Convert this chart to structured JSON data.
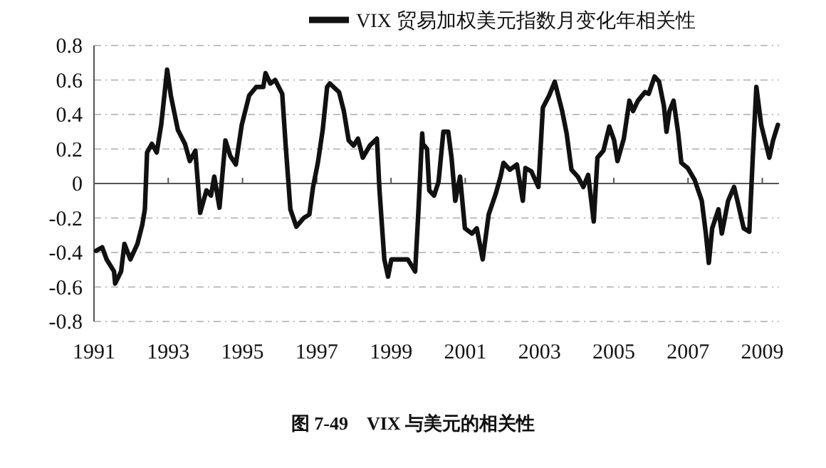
{
  "chart_data": {
    "type": "line",
    "legend": "top",
    "grid": "y",
    "marker": "none",
    "line_style": "solid",
    "annotations": [
      "图 7-49　VIX 与美元的相关性"
    ],
    "xlim": [
      1991,
      2009.45
    ],
    "xticks": [
      1991,
      1993,
      1995,
      1997,
      1999,
      2001,
      2003,
      2005,
      2007,
      2009
    ],
    "ylim": [
      -0.8,
      0.8
    ],
    "yticks": [
      {
        "value": -0.8,
        "label": "-0.8"
      },
      {
        "value": -0.6,
        "label": "-0.6"
      },
      {
        "value": -0.4,
        "label": "-0.4"
      },
      {
        "value": -0.2,
        "label": "-0.2"
      },
      0,
      {
        "value": 0.2,
        "label": "0.2"
      },
      {
        "value": 0.4,
        "label": "0.4"
      },
      {
        "value": 0.6,
        "label": "0.6"
      },
      {
        "value": 0.8,
        "label": "0.8"
      }
    ],
    "series": [
      {
        "name": "VIX 贸易加权美元指数月变化年相关性",
        "color": "#111111",
        "x": [
          1991.06,
          1991.22,
          1991.34,
          1991.54,
          1991.57,
          1991.73,
          1991.82,
          1991.98,
          1992.17,
          1992.3,
          1992.37,
          1992.43,
          1992.56,
          1992.69,
          1992.81,
          1992.97,
          1993.07,
          1993.26,
          1993.45,
          1993.58,
          1993.73,
          1993.86,
          1994.03,
          1994.15,
          1994.24,
          1994.38,
          1994.54,
          1994.67,
          1994.82,
          1994.98,
          1995.18,
          1995.37,
          1995.56,
          1995.62,
          1995.75,
          1995.88,
          1996.07,
          1996.16,
          1996.29,
          1996.45,
          1996.65,
          1996.8,
          1996.9,
          1997.03,
          1997.16,
          1997.28,
          1997.35,
          1997.6,
          1997.73,
          1997.86,
          1997.99,
          1998.11,
          1998.24,
          1998.43,
          1998.62,
          1998.69,
          1998.82,
          1998.92,
          1999.01,
          1999.26,
          1999.45,
          1999.65,
          1999.74,
          1999.84,
          1999.86,
          1999.97,
          2000.03,
          2000.16,
          2000.28,
          2000.41,
          2000.54,
          2000.63,
          2000.73,
          2000.86,
          2000.99,
          2001.18,
          2001.31,
          2001.47,
          2001.63,
          2001.82,
          2001.95,
          2002.03,
          2002.2,
          2002.39,
          2002.55,
          2002.62,
          2002.78,
          2002.97,
          2003.09,
          2003.26,
          2003.41,
          2003.61,
          2003.73,
          2003.86,
          2004.03,
          2004.18,
          2004.31,
          2004.46,
          2004.56,
          2004.72,
          2004.88,
          2005.01,
          2005.1,
          2005.27,
          2005.42,
          2005.52,
          2005.65,
          2005.84,
          2005.94,
          2006.1,
          2006.22,
          2006.35,
          2006.42,
          2006.5,
          2006.61,
          2006.73,
          2006.82,
          2006.99,
          2007.18,
          2007.37,
          2007.48,
          2007.56,
          2007.65,
          2007.82,
          2007.91,
          2008.08,
          2008.24,
          2008.33,
          2008.5,
          2008.65,
          2008.75,
          2008.84,
          2008.97,
          2009.19,
          2009.29,
          2009.42
        ],
        "values": [
          -0.39,
          -0.37,
          -0.44,
          -0.51,
          -0.58,
          -0.51,
          -0.35,
          -0.44,
          -0.35,
          -0.24,
          -0.15,
          0.18,
          0.23,
          0.18,
          0.34,
          0.66,
          0.51,
          0.31,
          0.23,
          0.13,
          0.19,
          -0.17,
          -0.04,
          -0.07,
          0.04,
          -0.14,
          0.25,
          0.16,
          0.11,
          0.34,
          0.51,
          0.56,
          0.56,
          0.64,
          0.58,
          0.6,
          0.52,
          0.23,
          -0.15,
          -0.25,
          -0.2,
          -0.18,
          -0.02,
          0.12,
          0.31,
          0.56,
          0.58,
          0.53,
          0.42,
          0.25,
          0.22,
          0.26,
          0.15,
          0.22,
          0.26,
          -0.04,
          -0.44,
          -0.54,
          -0.44,
          -0.44,
          -0.44,
          -0.51,
          -0.15,
          0.29,
          0.23,
          0.2,
          -0.04,
          -0.07,
          0.01,
          0.3,
          0.3,
          0.15,
          -0.1,
          0.04,
          -0.26,
          -0.29,
          -0.26,
          -0.44,
          -0.18,
          -0.06,
          0.04,
          0.12,
          0.08,
          0.11,
          -0.1,
          0.09,
          0.07,
          -0.02,
          0.44,
          0.51,
          0.59,
          0.42,
          0.29,
          0.08,
          0.04,
          -0.02,
          0.05,
          -0.22,
          0.15,
          0.19,
          0.33,
          0.25,
          0.13,
          0.26,
          0.48,
          0.42,
          0.48,
          0.53,
          0.52,
          0.62,
          0.59,
          0.45,
          0.3,
          0.42,
          0.48,
          0.3,
          0.12,
          0.09,
          0.02,
          -0.1,
          -0.29,
          -0.46,
          -0.26,
          -0.15,
          -0.29,
          -0.1,
          -0.02,
          -0.1,
          -0.26,
          -0.28,
          0.18,
          0.56,
          0.34,
          0.15,
          0.25,
          0.34
        ]
      }
    ]
  }
}
